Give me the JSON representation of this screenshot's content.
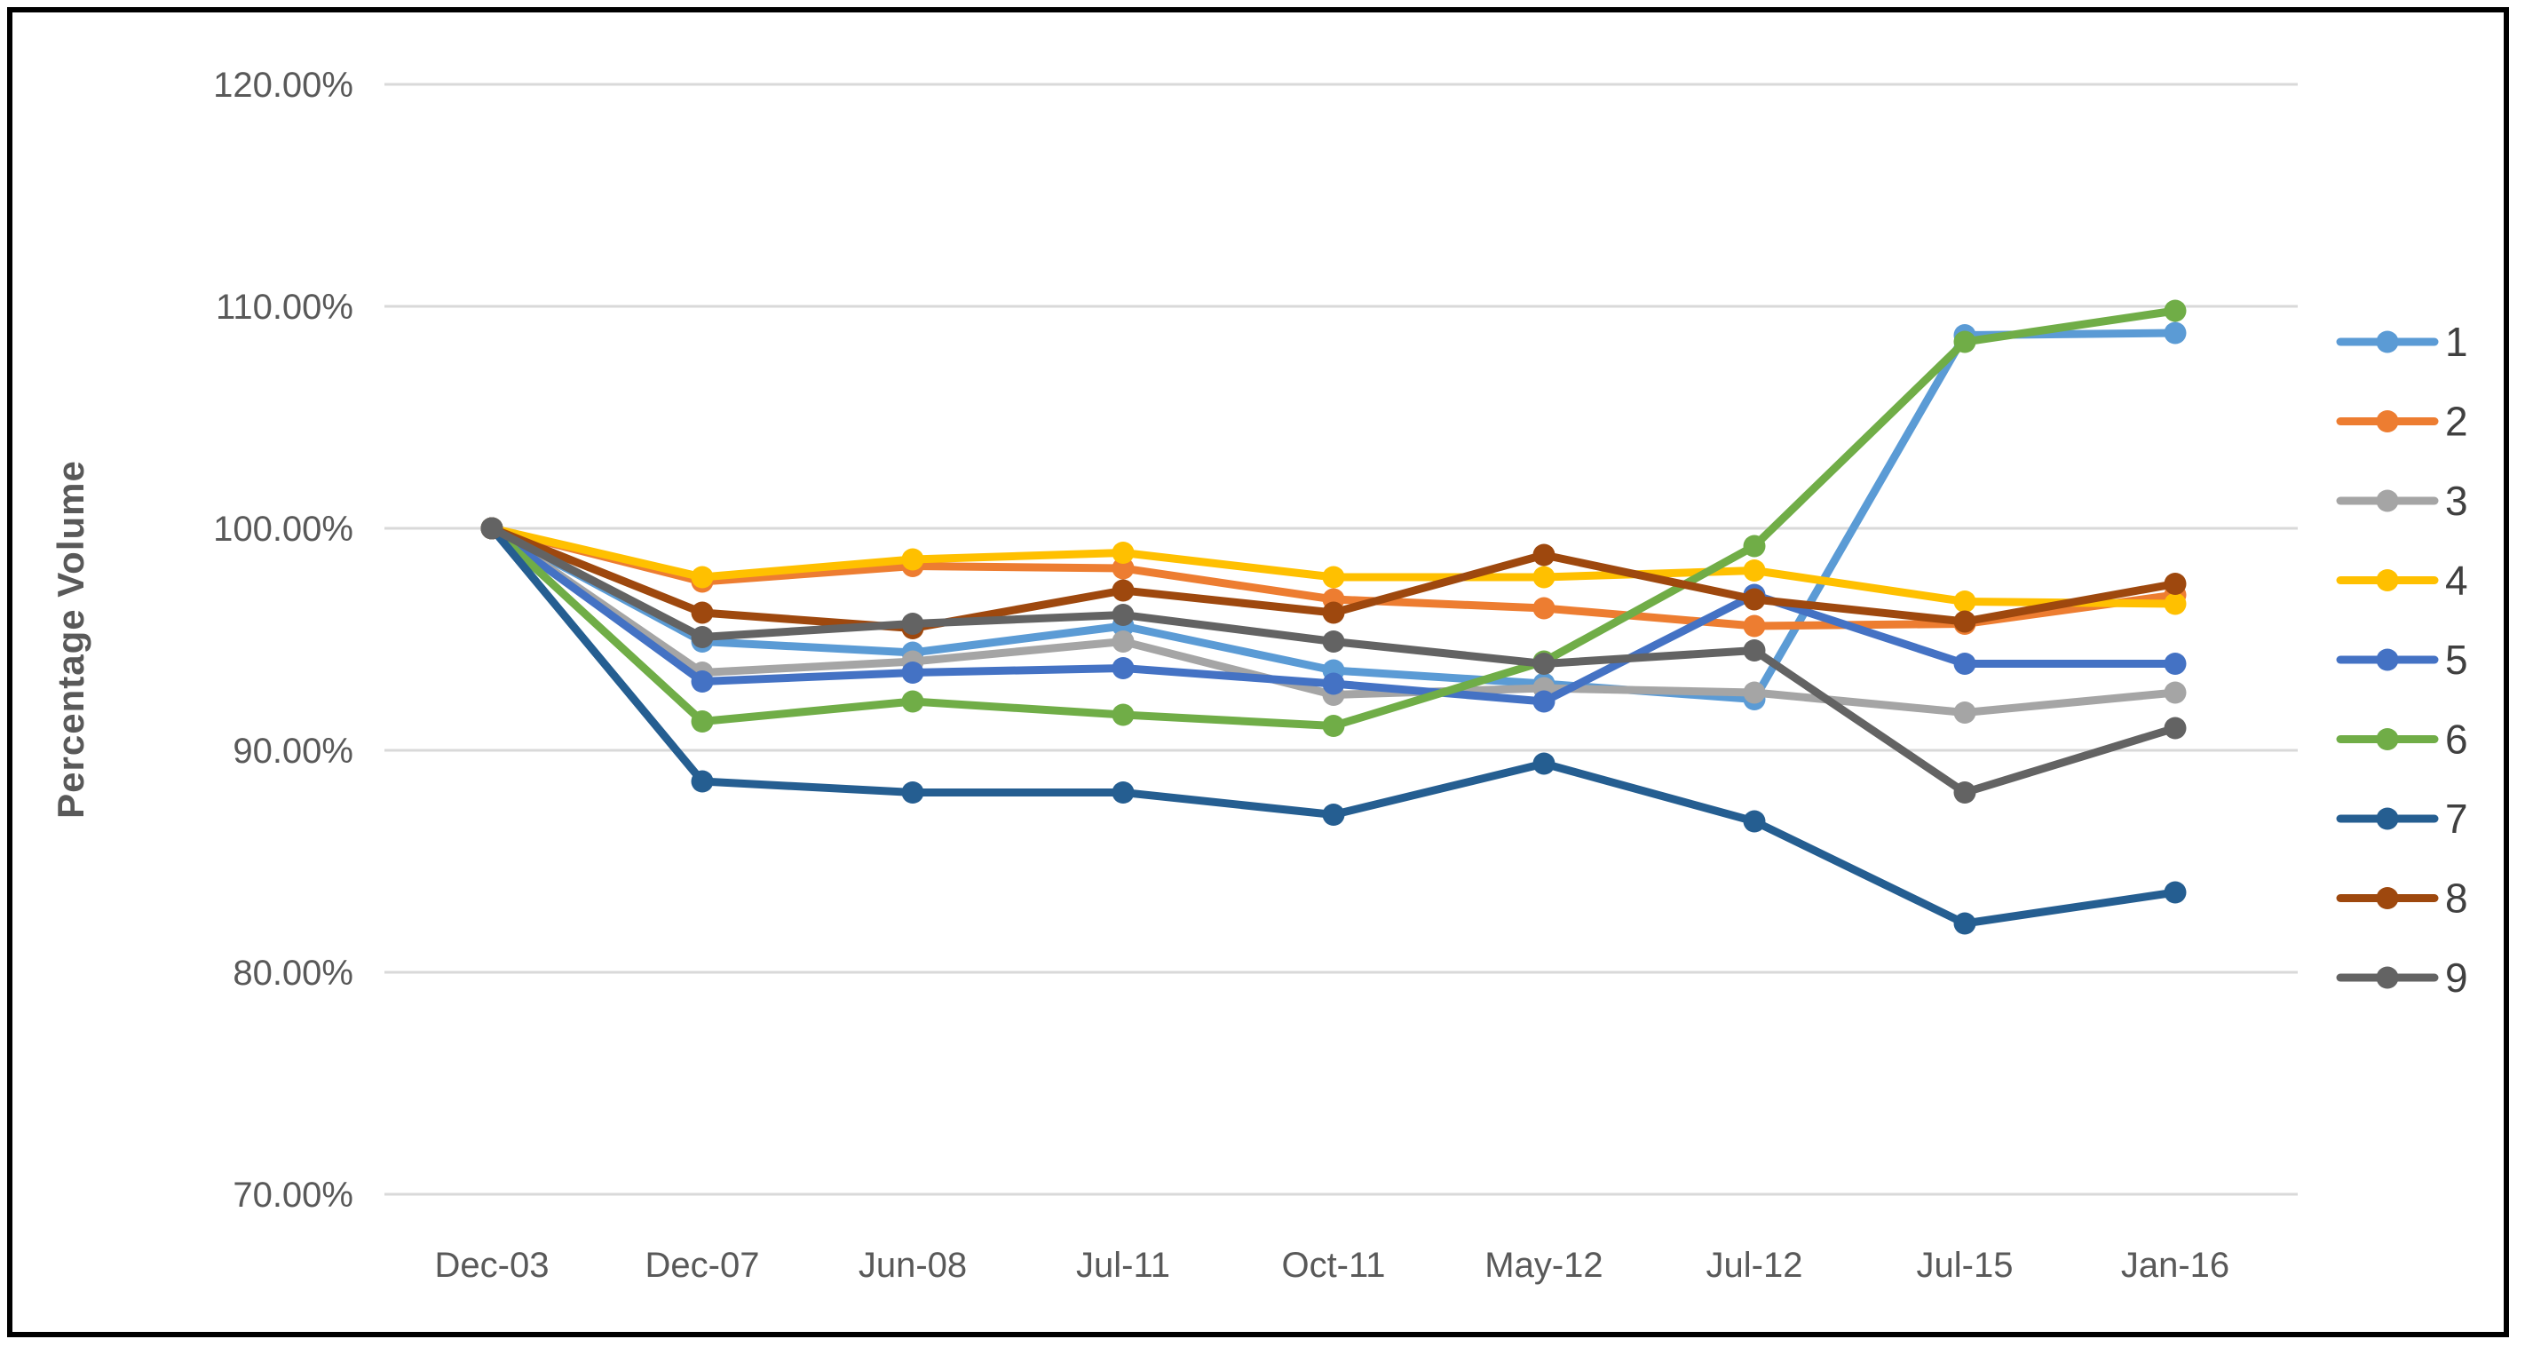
{
  "chart_data": {
    "type": "line",
    "title": "",
    "xlabel": "",
    "ylabel": "Percentage Volume",
    "categories": [
      "Dec-03",
      "Dec-07",
      "Jun-08",
      "Jul-11",
      "Oct-11",
      "May-12",
      "Jul-12",
      "Jul-15",
      "Jan-16"
    ],
    "y_axis": {
      "min": 70,
      "max": 120,
      "step": 10,
      "tick_labels": [
        "120.00%",
        "110.00%",
        "100.00%",
        "90.00%",
        "80.00%",
        "70.00%"
      ]
    },
    "grid": true,
    "legend_position": "right",
    "series": [
      {
        "name": "1",
        "color": "#5B9BD5",
        "values": [
          100,
          94.9,
          94.4,
          95.6,
          93.6,
          93.0,
          92.3,
          108.7,
          108.8
        ]
      },
      {
        "name": "2",
        "color": "#ED7D31",
        "values": [
          100,
          97.6,
          98.3,
          98.2,
          96.8,
          96.4,
          95.6,
          95.7,
          97.0
        ]
      },
      {
        "name": "3",
        "color": "#A5A5A5",
        "values": [
          100,
          93.5,
          94.0,
          94.9,
          92.5,
          92.8,
          92.6,
          91.7,
          92.6
        ]
      },
      {
        "name": "4",
        "color": "#FFC000",
        "values": [
          100,
          97.8,
          98.6,
          98.9,
          97.8,
          97.8,
          98.1,
          96.7,
          96.6
        ]
      },
      {
        "name": "5",
        "color": "#4472C4",
        "values": [
          100,
          93.1,
          93.5,
          93.7,
          93.0,
          92.2,
          97.0,
          93.9,
          93.9
        ]
      },
      {
        "name": "6",
        "color": "#70AD47",
        "values": [
          100,
          91.3,
          92.2,
          91.6,
          91.1,
          94.0,
          99.2,
          108.4,
          109.8
        ]
      },
      {
        "name": "7",
        "color": "#255E91",
        "values": [
          100,
          88.6,
          88.1,
          88.1,
          87.1,
          89.4,
          86.8,
          82.2,
          83.6
        ]
      },
      {
        "name": "8",
        "color": "#9E480E",
        "values": [
          100,
          96.2,
          95.5,
          97.2,
          96.2,
          98.8,
          96.8,
          95.8,
          97.5
        ]
      },
      {
        "name": "9",
        "color": "#636363",
        "values": [
          100,
          95.1,
          95.7,
          96.1,
          94.9,
          93.9,
          94.5,
          88.1,
          91.0
        ]
      }
    ],
    "gridline_color": "#D9D9D9",
    "tick_label_color": "#595959",
    "legend_text_color": "#404040"
  }
}
